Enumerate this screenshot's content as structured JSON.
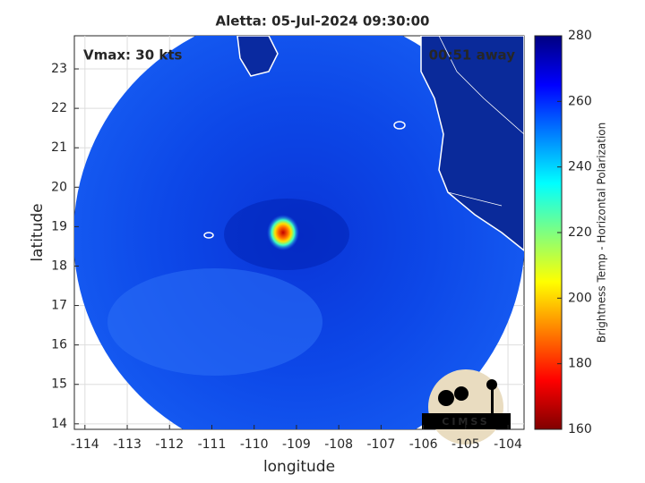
{
  "chart_data": {
    "type": "image",
    "title": "Aletta: 05-Jul-2024 09:30:00",
    "annotations": [
      "Vmax: 30 kts",
      "00:51 away"
    ],
    "xlabel": "longitude",
    "ylabel": "latitude",
    "xlim": [
      -114.25,
      -103.62
    ],
    "xticks": [
      -114,
      -113,
      -112,
      -111,
      -110,
      -109,
      -108,
      -107,
      -106,
      -105,
      -104
    ],
    "ylim": [
      13.86,
      23.84
    ],
    "yticks": [
      14,
      15,
      16,
      17,
      18,
      19,
      20,
      21,
      22,
      23
    ],
    "grid": true,
    "colorbar": {
      "label": "Brightness Temp - Horizontal Polarization",
      "lim": [
        160,
        280
      ],
      "ticks": [
        160,
        180,
        200,
        220,
        240,
        260,
        280
      ]
    },
    "logo": "CIMSS"
  }
}
